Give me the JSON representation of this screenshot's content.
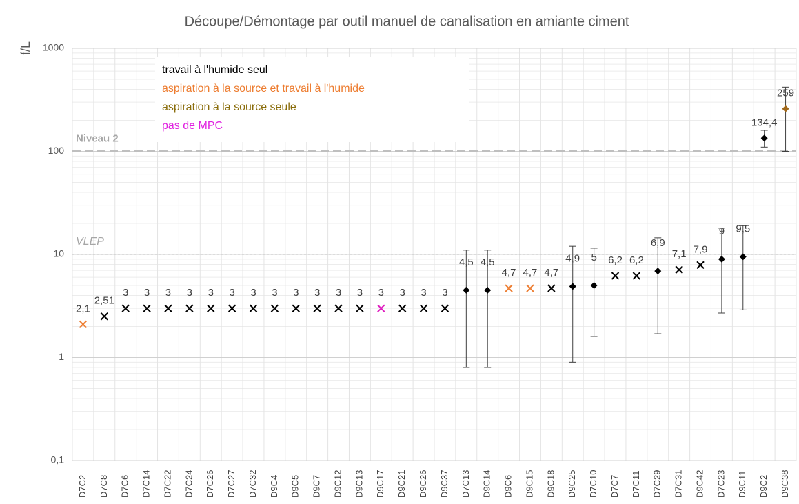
{
  "chart_data": {
    "type": "scatter",
    "title": "Découpe/Démontage par outil manuel de canalisation en amiante ciment",
    "y_label": "f/L",
    "log_scale": true,
    "grid": true,
    "ylim": [
      0.1,
      1000
    ],
    "yticks": [
      {
        "value": 0.1,
        "label": "0,1"
      },
      1,
      10,
      100,
      1000
    ],
    "categories": [
      "D7C2",
      "D7C8",
      "D7C6",
      "D7C14",
      "D7C22",
      "D7C24",
      "D7C26",
      "D7C27",
      "D7C32",
      "D9C4",
      "D9C5",
      "D9C7",
      "D9C12",
      "D9C13",
      "D9C17",
      "D9C21",
      "D9C26",
      "D9C37",
      "D7C13",
      "D9C14",
      "D9C6",
      "D9C15",
      "D9C18",
      "D9C25",
      "D7C10",
      "D7C7",
      "D7C11",
      "D7C29",
      "D7C31",
      "D9C42",
      "D7C23",
      "D9C11",
      "D9C2",
      "D9C38"
    ],
    "values": [
      2.1,
      2.51,
      3,
      3,
      3,
      3,
      3,
      3,
      3,
      3,
      3,
      3,
      3,
      3,
      3,
      3,
      3,
      3,
      4.5,
      4.5,
      4.7,
      4.7,
      4.7,
      4.9,
      5,
      6.2,
      6.2,
      6.9,
      7.1,
      7.9,
      9,
      9.5,
      134.4,
      259
    ],
    "value_labels": [
      "2,1",
      "2,51",
      "3",
      "3",
      "3",
      "3",
      "3",
      "3",
      "3",
      "3",
      "3",
      "3",
      "3",
      "3",
      "3",
      "3",
      "3",
      "3",
      "4,5",
      "4,5",
      "4,7",
      "4,7",
      "4,7",
      "4,9",
      "5",
      "6,2",
      "6,2",
      "6,9",
      "7,1",
      "7,9",
      "9",
      "9,5",
      "134,4",
      "259"
    ],
    "error_low": [
      null,
      null,
      null,
      null,
      null,
      null,
      null,
      null,
      null,
      null,
      null,
      null,
      null,
      null,
      null,
      null,
      null,
      null,
      0.8,
      0.8,
      null,
      null,
      null,
      0.9,
      1.6,
      null,
      null,
      1.7,
      null,
      null,
      2.7,
      2.9,
      110,
      100
    ],
    "error_high": [
      null,
      null,
      null,
      null,
      null,
      null,
      null,
      null,
      null,
      null,
      null,
      null,
      null,
      null,
      null,
      null,
      null,
      null,
      11,
      11,
      null,
      null,
      null,
      12,
      11.5,
      null,
      null,
      14.5,
      null,
      null,
      18,
      19,
      160,
      420
    ],
    "markers": [
      "x",
      "x",
      "x",
      "x",
      "x",
      "x",
      "x",
      "x",
      "x",
      "x",
      "x",
      "x",
      "x",
      "x",
      "x",
      "x",
      "x",
      "x",
      "diamond",
      "diamond",
      "x",
      "x",
      "x",
      "diamond",
      "diamond",
      "x",
      "x",
      "diamond",
      "x",
      "x",
      "diamond",
      "diamond",
      "diamond",
      "diamond"
    ],
    "colors": [
      "#ed7d31",
      "#000000",
      "#000000",
      "#000000",
      "#000000",
      "#000000",
      "#000000",
      "#000000",
      "#000000",
      "#000000",
      "#000000",
      "#000000",
      "#000000",
      "#000000",
      "#e020c0",
      "#000000",
      "#000000",
      "#000000",
      "#000000",
      "#000000",
      "#ed7d31",
      "#ed7d31",
      "#000000",
      "#000000",
      "#000000",
      "#000000",
      "#000000",
      "#000000",
      "#000000",
      "#000000",
      "#000000",
      "#000000",
      "#000000",
      "#a0681a"
    ],
    "reference_lines": [
      {
        "label": "Niveau 2",
        "value": 100,
        "style": "dashed"
      },
      {
        "label": "VLEP",
        "value": 10,
        "style": "dotted"
      }
    ],
    "legend": [
      {
        "label": "travail à l'humide seul",
        "color": "#000000"
      },
      {
        "label": "aspiration à la source et travail à l'humide",
        "color": "#ed7d31"
      },
      {
        "label": "aspiration à la source seule",
        "color": "#8a6d0b"
      },
      {
        "label": "pas de MPC",
        "color": "#e020e0"
      }
    ]
  }
}
